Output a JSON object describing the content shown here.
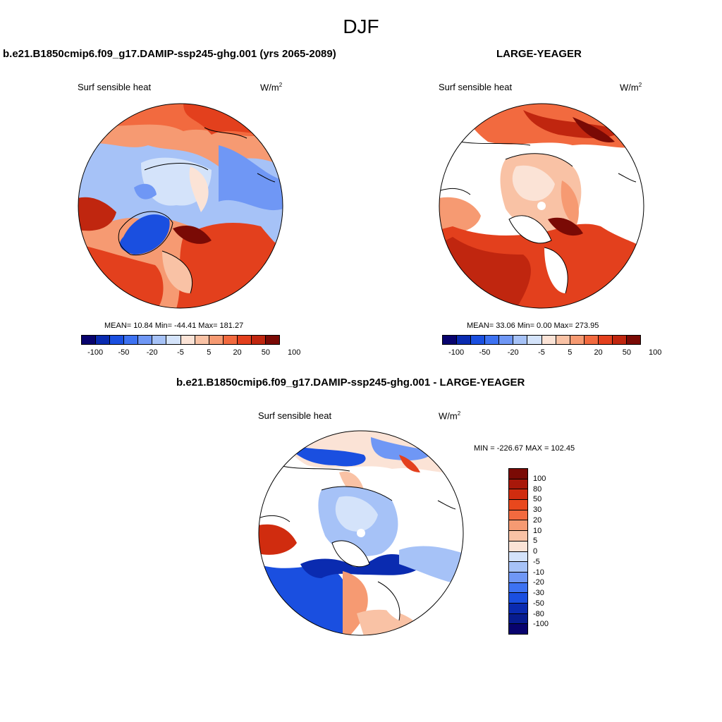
{
  "season": "DJF",
  "panels": {
    "test": {
      "title": "b.e21.B1850cmip6.f09_g17.DAMIP-ssp245-ghg.001 (yrs 2065-2089)",
      "variable": "Surf sensible heat",
      "units": "W/m",
      "units_sup": "2",
      "stats": "MEAN=  10.84  Min= -44.41  Max= 181.27"
    },
    "obs": {
      "title": "LARGE-YEAGER",
      "variable": "Surf sensible heat",
      "units": "W/m",
      "units_sup": "2",
      "stats": "MEAN=  33.06  Min=    0.00  Max= 273.95"
    },
    "diff": {
      "title": "b.e21.B1850cmip6.f09_g17.DAMIP-ssp245-ghg.001 - LARGE-YEAGER",
      "variable": "Surf sensible heat",
      "units": "W/m",
      "units_sup": "2",
      "stats": "MIN = -226.67 MAX = 102.45"
    }
  },
  "colorbar_main": {
    "colors": [
      "#08036e",
      "#0a2bb0",
      "#1a4fe0",
      "#3d72f2",
      "#6f97f5",
      "#a6c2f7",
      "#d4e3fa",
      "#fbe3d6",
      "#f9c2a5",
      "#f69a72",
      "#f26a3f",
      "#e3401d",
      "#c0260f",
      "#7a0a05"
    ],
    "tick_labels": [
      "-100",
      "-50",
      "-20",
      "-5",
      "5",
      "20",
      "50",
      "100"
    ]
  },
  "colorbar_diff": {
    "colors": [
      "#7a0a05",
      "#a8180a",
      "#d02c0f",
      "#e8481d",
      "#f26a3f",
      "#f69a72",
      "#f9c2a5",
      "#fbe3d6",
      "#d4e3fa",
      "#a6c2f7",
      "#6f97f5",
      "#3d72f2",
      "#1a4fe0",
      "#0a2bb0",
      "#071c8f",
      "#08036e"
    ],
    "tick_labels": [
      "100",
      "80",
      "50",
      "30",
      "20",
      "10",
      "5",
      "0",
      "-5",
      "-10",
      "-20",
      "-30",
      "-50",
      "-80",
      "-100"
    ]
  }
}
